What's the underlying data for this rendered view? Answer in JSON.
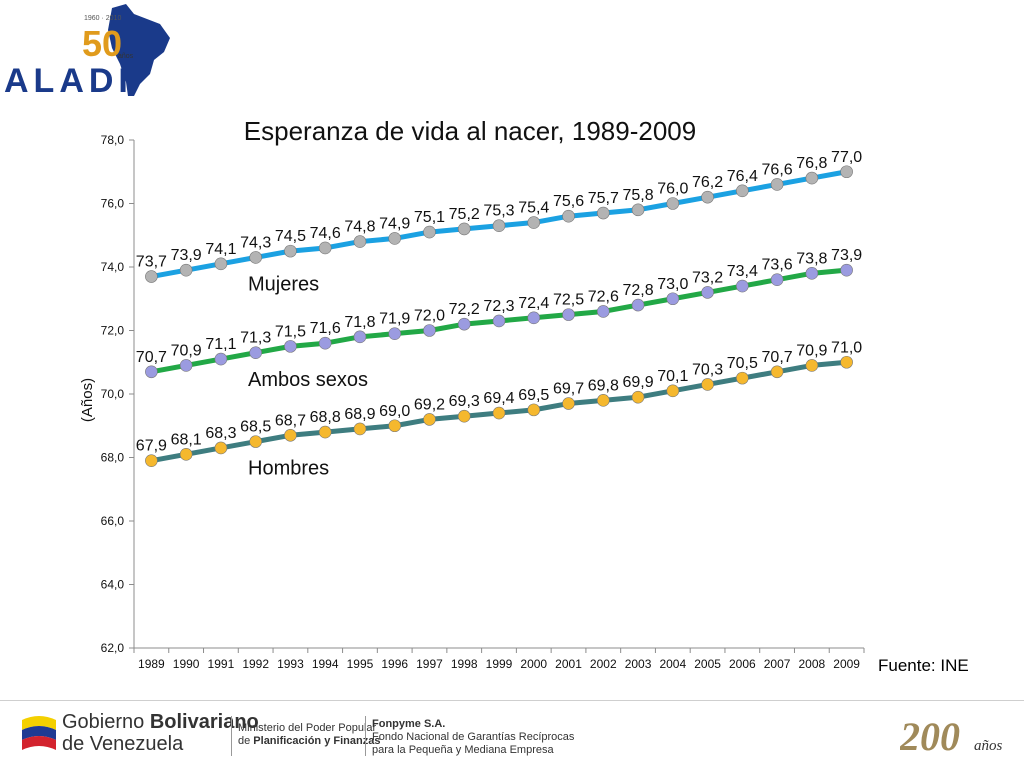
{
  "logo": {
    "brand": "ALADI",
    "anniversary_years": "1960 · 2010",
    "anniversary_number": "50",
    "anniversary_word": "años"
  },
  "chart_data": {
    "type": "line",
    "title": "Esperanza de vida al nacer, 1989-2009",
    "xlabel": "",
    "ylabel": "(Años)",
    "ylim": [
      62,
      78
    ],
    "yticks": [
      "62,0",
      "64,0",
      "66,0",
      "68,0",
      "70,0",
      "72,0",
      "74,0",
      "76,0",
      "78,0"
    ],
    "grid": false,
    "categories": [
      "1989",
      "1990",
      "1991",
      "1992",
      "1993",
      "1994",
      "1995",
      "1996",
      "1997",
      "1998",
      "1999",
      "2000",
      "2001",
      "2002",
      "2003",
      "2004",
      "2005",
      "2006",
      "2007",
      "2008",
      "2009"
    ],
    "series": [
      {
        "name": "Mujeres",
        "line_color": "#1ba1e2",
        "marker_color": "#b3b3b3",
        "values": [
          73.7,
          73.9,
          74.1,
          74.3,
          74.5,
          74.6,
          74.8,
          74.9,
          75.1,
          75.2,
          75.3,
          75.4,
          75.6,
          75.7,
          75.8,
          76.0,
          76.2,
          76.4,
          76.6,
          76.8,
          77.0
        ],
        "labels": [
          "73,7",
          "73,9",
          "74,1",
          "74,3",
          "74,5",
          "74,6",
          "74,8",
          "74,9",
          "75,1",
          "75,2",
          "75,3",
          "75,4",
          "75,6",
          "75,7",
          "75,8",
          "76,0",
          "76,2",
          "76,4",
          "76,6",
          "76,8",
          "77,0"
        ]
      },
      {
        "name": "Ambos sexos",
        "line_color": "#22a846",
        "marker_color": "#9b9be0",
        "values": [
          70.7,
          70.9,
          71.1,
          71.3,
          71.5,
          71.6,
          71.8,
          71.9,
          72.0,
          72.2,
          72.3,
          72.4,
          72.5,
          72.6,
          72.8,
          73.0,
          73.2,
          73.4,
          73.6,
          73.8,
          73.9
        ],
        "labels": [
          "70,7",
          "70,9",
          "71,1",
          "71,3",
          "71,5",
          "71,6",
          "71,8",
          "71,9",
          "72,0",
          "72,2",
          "72,3",
          "72,4",
          "72,5",
          "72,6",
          "72,8",
          "73,0",
          "73,2",
          "73,4",
          "73,6",
          "73,8",
          "73,9"
        ]
      },
      {
        "name": "Hombres",
        "line_color": "#3e7d80",
        "marker_color": "#f5b82e",
        "values": [
          67.9,
          68.1,
          68.3,
          68.5,
          68.7,
          68.8,
          68.9,
          69.0,
          69.2,
          69.3,
          69.4,
          69.5,
          69.7,
          69.8,
          69.9,
          70.1,
          70.3,
          70.5,
          70.7,
          70.9,
          71.0
        ],
        "labels": [
          "67,9",
          "68,1",
          "68,3",
          "68,5",
          "68,7",
          "68,8",
          "68,9",
          "69,0",
          "69,2",
          "69,3",
          "69,4",
          "69,5",
          "69,7",
          "69,8",
          "69,9",
          "70,1",
          "70,3",
          "70,5",
          "70,7",
          "70,9",
          "71,0"
        ]
      }
    ]
  },
  "source_note": "Fuente: INE",
  "footer": {
    "gob_line1_a": "Gobierno ",
    "gob_line1_b": "Bolivariano",
    "gob_line2": "de Venezuela",
    "ministry_line1": "Ministerio del Poder Popular",
    "ministry_line2_a": "de ",
    "ministry_line2_b": "Planificación y Finanzas",
    "fonp_line1": "Fonpyme S.A.",
    "fonp_line2": "Fondo Nacional de Garantías Recíprocas",
    "fonp_line3": "para la Pequeña y Mediana Empresa",
    "bicent_number": "200",
    "bicent_word": "años"
  },
  "colors": {
    "flag_yellow": "#f4d000",
    "flag_blue": "#1f3a93",
    "flag_red": "#d3232e",
    "aladi_blue": "#1a3a8a"
  }
}
